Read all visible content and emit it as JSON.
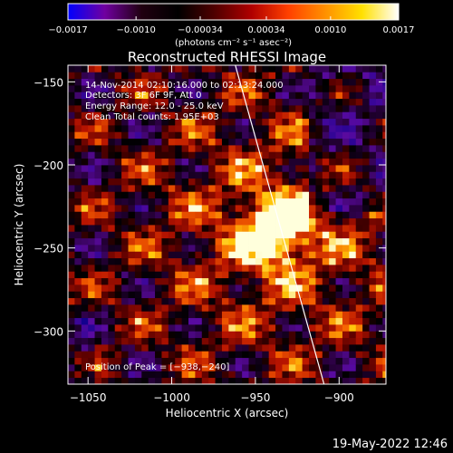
{
  "chart_data": {
    "type": "heatmap",
    "title": "Reconstructed RHESSI Image",
    "xlabel": "Heliocentric X (arcsec)",
    "ylabel": "Heliocentric Y (arcsec)",
    "xlim": [
      -1062,
      -872
    ],
    "ylim": [
      -332,
      -140
    ],
    "x_ticks": [
      -1050,
      -1000,
      -950,
      -900
    ],
    "x_tick_labels": [
      "−1050",
      "−1000",
      "−950",
      "−900"
    ],
    "y_ticks": [
      -150,
      -200,
      -250,
      -300
    ],
    "y_tick_labels": [
      "−150",
      "−200",
      "−250",
      "−300"
    ],
    "colorbar": {
      "min": -0.0017,
      "max": 0.0017,
      "ticks": [
        -0.0017,
        -0.001,
        -0.00034,
        0.00034,
        0.001,
        0.0017
      ],
      "tick_labels": [
        "−0.0017",
        "−0.0010",
        "−0.00034",
        "0.00034",
        "0.0010",
        "0.0017"
      ],
      "units_label": "(photons cm⁻² s⁻¹ asec⁻²)",
      "colors": [
        "#0000ff",
        "#7000a0",
        "#200010",
        "#000000",
        "#500000",
        "#b00000",
        "#ff4000",
        "#ff9000",
        "#ffe000",
        "#ffffff"
      ]
    },
    "annotations": {
      "time_range": "14-Nov-2014 02:10:16.000 to 02:13:24.000",
      "detectors": "Detectors: 3F 6F 9F, Att 0",
      "energy": "Energy Range: 12.0 - 25.0 keV",
      "clean": "Clean    Total counts: 1.95E+03",
      "peak": "Position of Peak = [−938,−240]"
    },
    "peak": {
      "x": -938,
      "y": -240
    },
    "limb_line": [
      [
        -962,
        -140
      ],
      [
        -909,
        -332
      ]
    ],
    "footer_date": "19-May-2022 12:46"
  }
}
